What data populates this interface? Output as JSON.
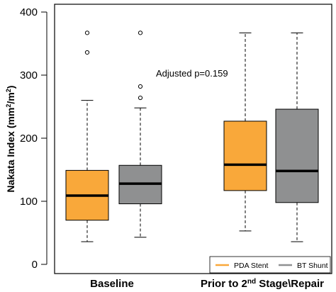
{
  "chart_data": {
    "type": "box",
    "ylabel": "Nakata Index (mm2/m2)",
    "ylabel_parts": {
      "a": "Nakata Index (mm",
      "b": "2",
      "c": "/m",
      "d": "2",
      "e": ")"
    },
    "ylim": [
      0,
      400
    ],
    "yticks": [
      0,
      100,
      200,
      300,
      400
    ],
    "grid": false,
    "categories": [
      "Baseline",
      "Prior to 2nd Stage\\Repair"
    ],
    "category_parts": [
      {
        "a": "Baseline",
        "b": "",
        "c": ""
      },
      {
        "a": "Prior to 2",
        "b": "nd",
        "c": " Stage\\Repair"
      }
    ],
    "series": [
      {
        "name": "PDA Stent",
        "color": "#F9A83A",
        "boxes": [
          {
            "whisker_low": 36,
            "q1": 70,
            "median": 109,
            "q3": 149,
            "whisker_high": 260,
            "outliers": [
              336,
              367
            ]
          },
          {
            "whisker_low": 53,
            "q1": 117,
            "median": 158,
            "q3": 227,
            "whisker_high": 367,
            "outliers": []
          }
        ]
      },
      {
        "name": "BT Shunt",
        "color": "#8F9091",
        "boxes": [
          {
            "whisker_low": 43,
            "q1": 96,
            "median": 128,
            "q3": 157,
            "whisker_high": 248,
            "outliers": [
              264,
              282,
              367
            ]
          },
          {
            "whisker_low": 36,
            "q1": 98,
            "median": 148,
            "q3": 246,
            "whisker_high": 367,
            "outliers": []
          }
        ]
      }
    ],
    "annotation": "Adjusted p=0.159",
    "legend_position": "bottom-right"
  }
}
